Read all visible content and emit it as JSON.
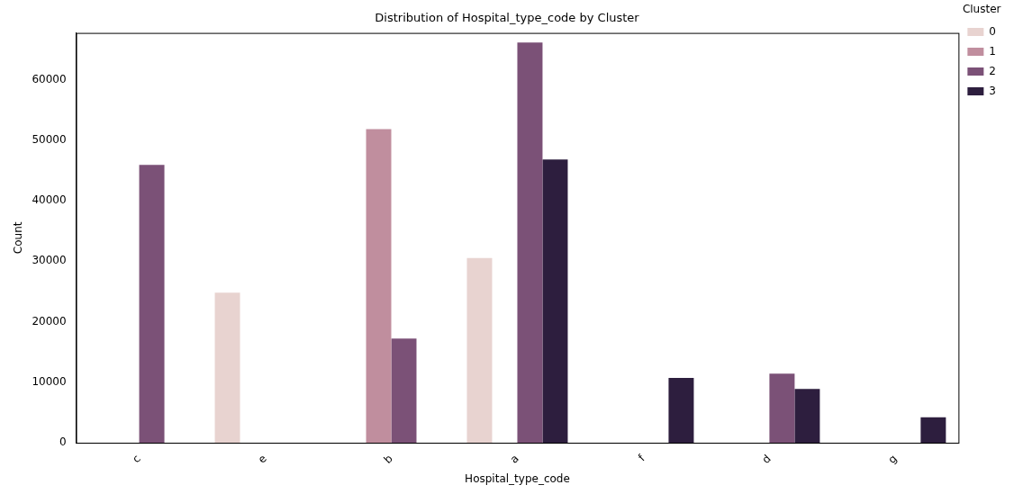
{
  "chart_data": {
    "type": "bar",
    "title": "Distribution of Hospital_type_code by Cluster",
    "x_label": "Hospital_type_code",
    "y_label": "Count",
    "categories": [
      "c",
      "e",
      "b",
      "a",
      "f",
      "d",
      "g"
    ],
    "series": [
      {
        "name": "0",
        "color": "#e8d3d0",
        "values": [
          null,
          24800,
          null,
          30500,
          null,
          null,
          null
        ]
      },
      {
        "name": "1",
        "color": "#c08e9e",
        "values": [
          null,
          null,
          51800,
          null,
          null,
          null,
          null
        ]
      },
      {
        "name": "2",
        "color": "#7b5177",
        "values": [
          45900,
          null,
          17200,
          66100,
          null,
          11400,
          null
        ]
      },
      {
        "name": "3",
        "color": "#2d1e3e",
        "values": [
          null,
          null,
          null,
          46800,
          10700,
          8900,
          4200
        ]
      }
    ],
    "ylim": [
      0,
      67700
    ],
    "yticks": [
      0,
      10000,
      20000,
      30000,
      40000,
      50000,
      60000
    ],
    "grid": false,
    "legend": "upper right",
    "legend_title": "Cluster"
  }
}
